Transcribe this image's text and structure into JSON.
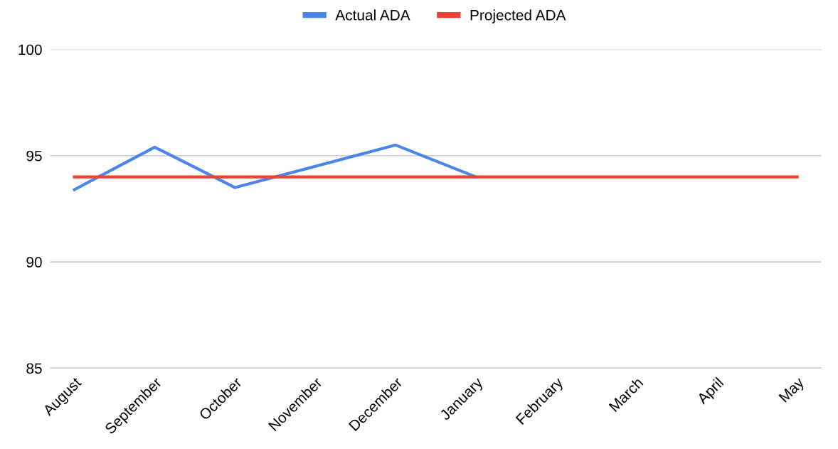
{
  "chart_data": {
    "type": "line",
    "categories": [
      "August",
      "September",
      "October",
      "November",
      "December",
      "January",
      "February",
      "March",
      "April",
      "May"
    ],
    "series": [
      {
        "name": "Actual ADA",
        "color": "#4a86e8",
        "values": [
          93.4,
          95.4,
          93.5,
          94.5,
          95.5,
          94.0,
          null,
          null,
          null,
          null
        ]
      },
      {
        "name": "Projected ADA",
        "color": "#ea4335",
        "values": [
          94,
          94,
          94,
          94,
          94,
          94,
          94,
          94,
          94,
          94
        ]
      }
    ],
    "ylim": [
      85,
      100
    ],
    "yticks": [
      85,
      90,
      95,
      100
    ],
    "grid": "y",
    "legend": "top",
    "marker": "none",
    "line_style": "solid"
  }
}
